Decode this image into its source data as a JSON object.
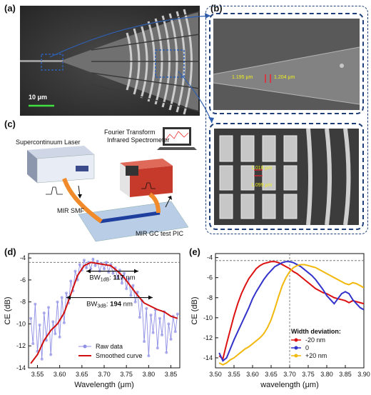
{
  "panels": {
    "a": "(a)",
    "b": "(b)",
    "c": "(c)",
    "d": "(d)",
    "e": "(e)"
  },
  "sem_a": {
    "scale": "10 μm"
  },
  "sem_b_top": {
    "m1": "1.195 μm",
    "m2": "1.204 μm"
  },
  "sem_b_bottom": {
    "m1": "1.018 μm",
    "m2": "1.099 μm"
  },
  "setup": {
    "laser": "Supercontinuum Laser",
    "spectrometer_line1": "Fourier Transform",
    "spectrometer_line2": "Infrared Spectrometer",
    "fiber": "MIR SMF",
    "pic": "MIR GC test PIC"
  },
  "colors": {
    "raw": "#8f8fe6",
    "smooth": "#d01010",
    "series_minus20": "#dd1111",
    "series_0": "#3333cc",
    "series_plus20": "#f2b80c",
    "box": "#1f3f7a"
  },
  "chart_data": [
    {
      "type": "line",
      "xlabel": "Wavelength (μm)",
      "ylabel": "CE (dB)",
      "xlim": [
        3.53,
        3.87
      ],
      "ylim": [
        -14,
        -3.6
      ],
      "xticks": [
        "3.55",
        "3.60",
        "3.65",
        "3.70",
        "3.75",
        "3.80",
        "3.85"
      ],
      "yticks": [
        "-4",
        "-6",
        "-8",
        "-10",
        "-12",
        "-14"
      ],
      "reference_line_y": -4.4,
      "annotations": [
        {
          "label": "BW",
          "sub": "1dB",
          "text": ": ",
          "value": "117",
          "unit": " nm",
          "x1": 3.66,
          "x2": 3.777,
          "y": -5.2
        },
        {
          "label": "BW",
          "sub": "3dB",
          "text": ": ",
          "value": "194",
          "unit": " nm",
          "x1": 3.615,
          "x2": 3.809,
          "y": -7.6
        }
      ],
      "legend": [
        "Raw data",
        "Smoothed curve"
      ],
      "series": [
        {
          "name": "Raw data",
          "x": [
            3.535,
            3.54,
            3.545,
            3.55,
            3.555,
            3.56,
            3.565,
            3.57,
            3.575,
            3.58,
            3.585,
            3.59,
            3.595,
            3.6,
            3.605,
            3.61,
            3.615,
            3.62,
            3.625,
            3.63,
            3.635,
            3.64,
            3.645,
            3.65,
            3.655,
            3.66,
            3.665,
            3.67,
            3.675,
            3.68,
            3.685,
            3.69,
            3.695,
            3.7,
            3.705,
            3.71,
            3.715,
            3.72,
            3.725,
            3.73,
            3.735,
            3.74,
            3.745,
            3.75,
            3.755,
            3.76,
            3.765,
            3.77,
            3.775,
            3.78,
            3.785,
            3.79,
            3.795,
            3.8,
            3.805,
            3.81,
            3.815,
            3.82,
            3.825,
            3.83,
            3.835,
            3.84,
            3.845,
            3.85,
            3.855,
            3.86,
            3.865
          ],
          "y": [
            -9.5,
            -11.8,
            -8.2,
            -12.5,
            -10.1,
            -13.2,
            -9.0,
            -11.5,
            -8.5,
            -12.8,
            -9.8,
            -10.9,
            -8.0,
            -11.2,
            -7.6,
            -9.9,
            -7.2,
            -8.1,
            -6.1,
            -7.0,
            -5.2,
            -6.0,
            -4.6,
            -5.1,
            -4.2,
            -4.9,
            -4.4,
            -5.0,
            -4.1,
            -4.7,
            -4.3,
            -5.2,
            -4.5,
            -5.0,
            -4.4,
            -5.3,
            -4.6,
            -5.4,
            -4.9,
            -5.8,
            -5.1,
            -6.3,
            -5.4,
            -6.8,
            -5.9,
            -7.4,
            -6.5,
            -8.0,
            -7.1,
            -9.4,
            -7.9,
            -11.6,
            -8.6,
            -12.9,
            -9.2,
            -10.8,
            -8.7,
            -12.2,
            -9.5,
            -11.0,
            -8.9,
            -12.6,
            -10.0,
            -11.4,
            -9.3,
            -10.7,
            -9.1
          ]
        },
        {
          "name": "Smoothed curve",
          "x": [
            3.535,
            3.55,
            3.565,
            3.58,
            3.595,
            3.61,
            3.625,
            3.64,
            3.655,
            3.67,
            3.685,
            3.7,
            3.715,
            3.73,
            3.745,
            3.76,
            3.775,
            3.79,
            3.805,
            3.82,
            3.835,
            3.85,
            3.865
          ],
          "y": [
            -13.6,
            -12.8,
            -11.5,
            -10.6,
            -10.0,
            -9.0,
            -7.3,
            -5.6,
            -4.7,
            -4.4,
            -4.5,
            -4.6,
            -4.7,
            -5.2,
            -5.8,
            -6.6,
            -7.4,
            -8.1,
            -8.4,
            -8.7,
            -8.9,
            -9.3,
            -9.5
          ]
        }
      ]
    },
    {
      "type": "line",
      "xlabel": "wavelength (μm)",
      "ylabel": "CE (dB)",
      "xlim": [
        3.5,
        3.9
      ],
      "ylim": [
        -15,
        -3.6
      ],
      "xticks": [
        "3.50",
        "3.55",
        "3.60",
        "3.65",
        "3.70",
        "3.75",
        "3.80",
        "3.85",
        "3.90"
      ],
      "yticks": [
        "-4",
        "-6",
        "-8",
        "-10",
        "-12",
        "-14"
      ],
      "reference_line_y": -4.3,
      "reference_line_x": 3.7,
      "legend_title": "Width deviation:",
      "series": [
        {
          "name": "-20 nm",
          "x": [
            3.51,
            3.52,
            3.53,
            3.54,
            3.55,
            3.56,
            3.57,
            3.58,
            3.59,
            3.6,
            3.61,
            3.62,
            3.63,
            3.64,
            3.65,
            3.66,
            3.67,
            3.68,
            3.69,
            3.7,
            3.71,
            3.72,
            3.73,
            3.74,
            3.75,
            3.76,
            3.77,
            3.78,
            3.79,
            3.8,
            3.81,
            3.82,
            3.83,
            3.84,
            3.85,
            3.86,
            3.87,
            3.88,
            3.89,
            3.9
          ],
          "y": [
            -13.8,
            -14.1,
            -12.6,
            -11.2,
            -9.8,
            -8.6,
            -7.6,
            -6.8,
            -6.1,
            -5.6,
            -5.1,
            -4.8,
            -4.6,
            -4.5,
            -4.4,
            -4.4,
            -4.5,
            -4.7,
            -4.9,
            -5.1,
            -5.4,
            -5.6,
            -5.9,
            -6.2,
            -6.5,
            -6.8,
            -7.1,
            -7.3,
            -7.5,
            -7.6,
            -7.8,
            -8.0,
            -8.1,
            -8.2,
            -8.3,
            -8.5,
            -8.3,
            -8.4,
            -8.5,
            -8.6
          ]
        },
        {
          "name": "0",
          "x": [
            3.51,
            3.52,
            3.53,
            3.54,
            3.55,
            3.56,
            3.57,
            3.58,
            3.59,
            3.6,
            3.61,
            3.62,
            3.63,
            3.64,
            3.65,
            3.66,
            3.67,
            3.68,
            3.69,
            3.7,
            3.71,
            3.72,
            3.73,
            3.74,
            3.75,
            3.76,
            3.77,
            3.78,
            3.79,
            3.8,
            3.81,
            3.82,
            3.83,
            3.84,
            3.85,
            3.86,
            3.87,
            3.88,
            3.89,
            3.9
          ],
          "y": [
            -13.5,
            -14.3,
            -14.0,
            -13.1,
            -12.2,
            -11.4,
            -10.6,
            -9.8,
            -9.0,
            -8.1,
            -7.4,
            -6.8,
            -6.2,
            -5.7,
            -5.3,
            -4.9,
            -4.7,
            -4.5,
            -4.4,
            -4.4,
            -4.5,
            -4.7,
            -4.9,
            -5.2,
            -5.5,
            -5.8,
            -6.2,
            -6.7,
            -7.2,
            -7.8,
            -8.2,
            -8.6,
            -8.1,
            -7.6,
            -7.4,
            -7.6,
            -8.2,
            -8.6,
            -9.0,
            -9.2
          ]
        },
        {
          "name": "+20 nm",
          "x": [
            3.51,
            3.52,
            3.53,
            3.54,
            3.55,
            3.56,
            3.57,
            3.58,
            3.59,
            3.6,
            3.61,
            3.62,
            3.63,
            3.64,
            3.65,
            3.66,
            3.67,
            3.68,
            3.69,
            3.7,
            3.71,
            3.72,
            3.73,
            3.74,
            3.75,
            3.76,
            3.77,
            3.78,
            3.79,
            3.8,
            3.81,
            3.82,
            3.83,
            3.84,
            3.85,
            3.86,
            3.87,
            3.88,
            3.89,
            3.9
          ],
          "y": [
            -14.5,
            -14.7,
            -14.5,
            -14.2,
            -14.0,
            -13.7,
            -13.4,
            -13.1,
            -12.9,
            -12.6,
            -12.3,
            -12.0,
            -11.6,
            -11.0,
            -10.2,
            -9.1,
            -7.9,
            -6.8,
            -6.0,
            -5.4,
            -5.0,
            -4.8,
            -4.7,
            -4.7,
            -4.8,
            -4.9,
            -5.0,
            -5.2,
            -5.4,
            -5.6,
            -5.8,
            -6.0,
            -6.2,
            -6.4,
            -6.6,
            -6.7,
            -6.5,
            -6.6,
            -6.8,
            -7.0
          ]
        }
      ]
    }
  ]
}
